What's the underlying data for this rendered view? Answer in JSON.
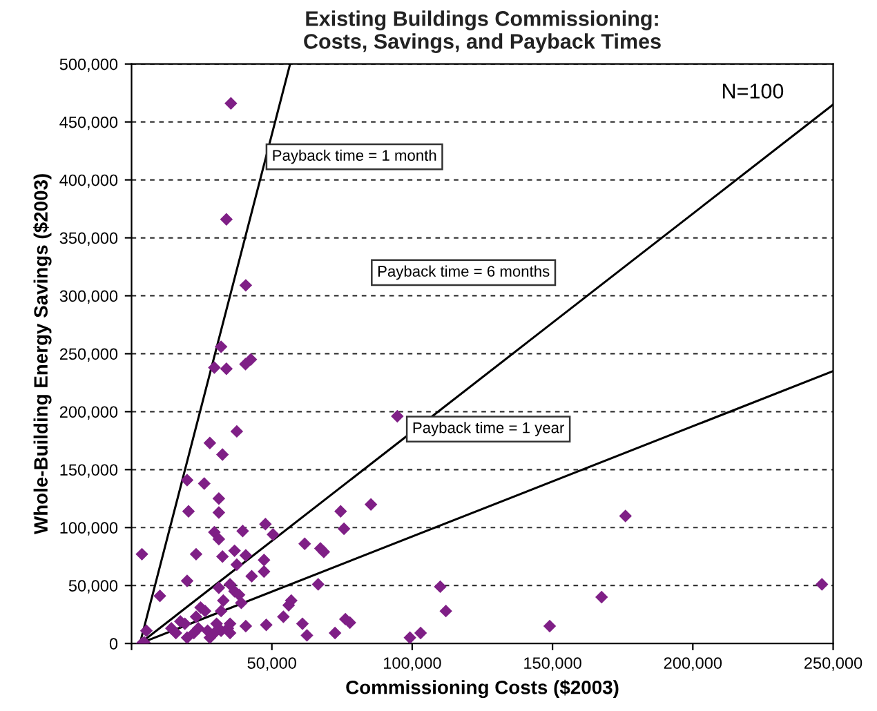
{
  "chart_data": {
    "type": "scatter",
    "title": "Existing Buildings Commissioning:\nCosts, Savings, and Payback Times",
    "xlabel": "Commissioning Costs ($2003)",
    "ylabel": "Whole-Building Energy Savings ($2003)",
    "xlim": [
      0,
      250000
    ],
    "ylim": [
      0,
      500000
    ],
    "xticks": [
      {
        "value": 0,
        "label": null
      },
      {
        "value": 50000,
        "label": "50,000"
      },
      {
        "value": 100000,
        "label": "100,000"
      },
      {
        "value": 150000,
        "label": "150,000"
      },
      {
        "value": 200000,
        "label": "200,000"
      },
      {
        "value": 250000,
        "label": "250,000"
      }
    ],
    "yticks": [
      {
        "value": 0,
        "label": "0"
      },
      {
        "value": 50000,
        "label": "50,000"
      },
      {
        "value": 100000,
        "label": "100,000"
      },
      {
        "value": 150000,
        "label": "150,000"
      },
      {
        "value": 200000,
        "label": "200,000"
      },
      {
        "value": 250000,
        "label": "250,000"
      },
      {
        "value": 300000,
        "label": "300,000"
      },
      {
        "value": 350000,
        "label": "350,000"
      },
      {
        "value": 400000,
        "label": "400,000"
      },
      {
        "value": 450000,
        "label": "450,000"
      },
      {
        "value": 500000,
        "label": "500,000"
      }
    ],
    "grid": "y",
    "legend": false,
    "series": [
      {
        "color": "#7f1f86",
        "marker": "diamond",
        "x": [
          31900,
          29500,
          33800,
          40600,
          42500,
          37500,
          27900,
          32400,
          19800,
          25900,
          31100,
          31100,
          20300,
          29500,
          31100,
          39600,
          47700,
          50400,
          74500,
          75700,
          85300,
          94700,
          3700,
          23000,
          32400,
          36700,
          40700,
          37500,
          47200,
          47200,
          61700,
          67300,
          68500,
          42800,
          19800,
          35100,
          36700,
          38300,
          31100,
          10100,
          39100,
          66500,
          56900,
          56000,
          54100,
          24600,
          26200,
          31900,
          32700,
          17400,
          19000,
          23000,
          23800,
          27100,
          29500,
          31900,
          34300,
          35100,
          30300,
          19800,
          22200,
          40700,
          48000,
          60900,
          62500,
          72500,
          76200,
          77800,
          14200,
          15800,
          5300,
          3700,
          4500,
          35100,
          27900,
          35400,
          33800,
          40700,
          176000,
          110000,
          112000,
          99200,
          103000,
          149000,
          167500,
          246000
        ],
        "values": [
          256000,
          238000,
          237000,
          241000,
          245000,
          183000,
          173000,
          163000,
          141000,
          138000,
          125000,
          113000,
          114000,
          96000,
          90000,
          97000,
          103000,
          94000,
          114000,
          99000,
          120000,
          196000,
          77000,
          77000,
          75000,
          80000,
          76000,
          68000,
          72000,
          62000,
          86000,
          82000,
          79000,
          58000,
          54000,
          51000,
          45000,
          42000,
          48000,
          41000,
          35000,
          51000,
          37000,
          33000,
          23000,
          31000,
          28000,
          28000,
          37000,
          19000,
          17000,
          23000,
          13000,
          11000,
          9000,
          11000,
          13000,
          17000,
          17000,
          5000,
          9000,
          15000,
          16000,
          17000,
          7000,
          9000,
          21000,
          18000,
          13000,
          9000,
          11000,
          0,
          1000,
          9000,
          5000,
          466000,
          366000,
          309000,
          110000,
          49000,
          28000,
          5000,
          9000,
          15000,
          40000,
          51000
        ]
      },
      {
        "type": "line",
        "color": "#000000",
        "line_style": "solid",
        "marker": "none",
        "x": [
          3000,
          56500
        ],
        "values": [
          0,
          500000
        ]
      },
      {
        "type": "line",
        "color": "#000000",
        "line_style": "solid",
        "marker": "none",
        "x": [
          3000,
          250000
        ],
        "values": [
          0,
          465000
        ]
      },
      {
        "type": "line",
        "color": "#000000",
        "line_style": "solid",
        "marker": "none",
        "x": [
          3000,
          250000
        ],
        "values": [
          0,
          235000
        ]
      }
    ],
    "annotations": [
      "Payback time = 1 month",
      "Payback time = 6 months",
      "Payback time = 1 year",
      "N=100"
    ]
  }
}
